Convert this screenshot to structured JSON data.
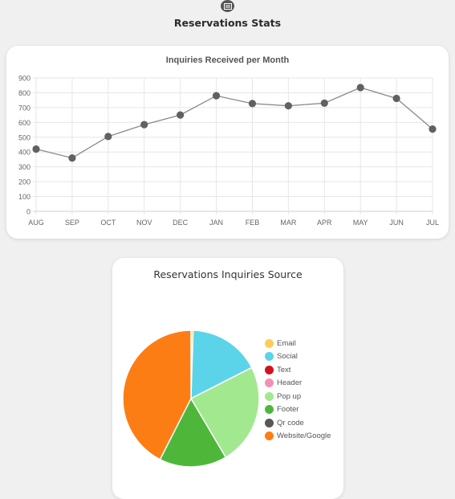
{
  "page": {
    "title": "Reservations Stats",
    "icon": "report-icon"
  },
  "chart_data": [
    {
      "type": "line",
      "title": "Inquiries Received per Month",
      "xlabel": "",
      "ylabel": "",
      "categories": [
        "AUG",
        "SEP",
        "OCT",
        "NOV",
        "DEC",
        "JAN",
        "FEB",
        "MAR",
        "APR",
        "MAY",
        "JUN",
        "JUL"
      ],
      "values": [
        420,
        360,
        505,
        585,
        650,
        780,
        727,
        712,
        730,
        835,
        762,
        555
      ],
      "ylim": [
        0,
        900
      ],
      "yticks": [
        "0",
        "100",
        "200",
        "300",
        "400",
        "500",
        "600",
        "700",
        "800",
        "900"
      ],
      "grid": true,
      "colors": {
        "line": "#8a8a8a",
        "point": "#616161"
      }
    },
    {
      "type": "pie",
      "title": "Reservations Inquiries Source",
      "legend_position": "right",
      "labels": [
        "Email",
        "Social",
        "Text",
        "Header",
        "Pop up",
        "Footer",
        "Qr code",
        "Website/Google"
      ],
      "values": [
        0.5,
        17,
        0,
        0,
        24,
        16,
        0,
        42.5
      ],
      "colors": [
        "#ffcd56",
        "#5bd4ea",
        "#d0141e",
        "#f291b4",
        "#a2e88f",
        "#4eb73a",
        "#585858",
        "#fd7d15"
      ]
    }
  ]
}
